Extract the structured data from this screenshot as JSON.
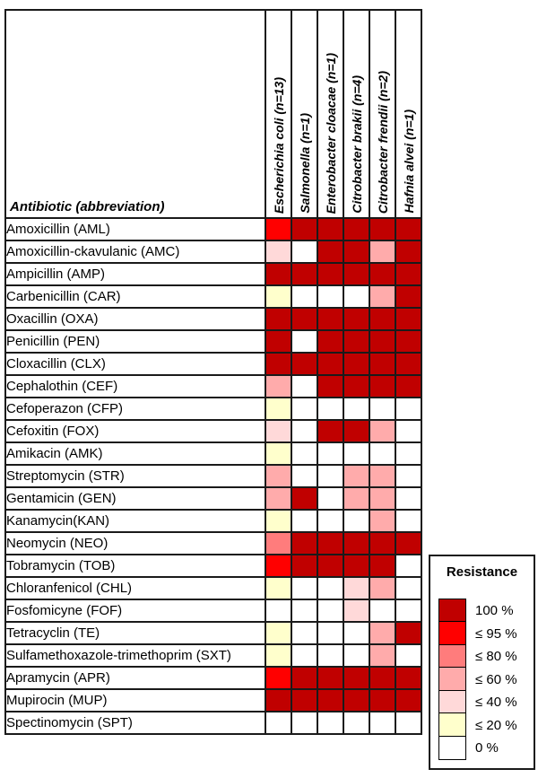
{
  "table": {
    "corner_label": "Antibiotic (abbreviation)"
  },
  "legend": {
    "title": "Resistance"
  },
  "chart_data": {
    "type": "heatmap",
    "description": "Percentage of antibiotic-resistant isolates per bacterial species; cell values are resistance buckets (upper bound %).",
    "columns": [
      "Escherichia coli (n=13)",
      "Salmonella (n=1)",
      "Enterobacter cloacae (n=1)",
      "Citrobacter brakii (n=4)",
      "Citrobacter frendii (n=2)",
      "Hafnia alvei (n=1)"
    ],
    "rows": [
      "Amoxicillin (AML)",
      "Amoxicillin-ckavulanic (AMC)",
      "Ampicillin (AMP)",
      "Carbenicillin (CAR)",
      "Oxacillin (OXA)",
      "Penicillin (PEN)",
      "Cloxacillin (CLX)",
      "Cephalothin (CEF)",
      "Cefoperazon (CFP)",
      "Cefoxitin (FOX)",
      "Amikacin (AMK)",
      "Streptomycin (STR)",
      "Gentamicin (GEN)",
      "Kanamycin(KAN)",
      "Neomycin (NEO)",
      "Tobramycin (TOB)",
      "Chloranfenicol (CHL)",
      "Fosfomicyne (FOF)",
      "Tetracyclin (TE)",
      "Sulfamethoxazole-trimethoprim (SXT)",
      "Apramycin (APR)",
      "Mupirocin (MUP)",
      "Spectinomycin (SPT)"
    ],
    "matrix": [
      [
        95,
        100,
        100,
        100,
        100,
        100
      ],
      [
        40,
        0,
        100,
        100,
        60,
        100
      ],
      [
        100,
        100,
        100,
        100,
        100,
        100
      ],
      [
        20,
        0,
        0,
        0,
        60,
        100
      ],
      [
        100,
        100,
        100,
        100,
        100,
        100
      ],
      [
        100,
        0,
        100,
        100,
        100,
        100
      ],
      [
        100,
        100,
        100,
        100,
        100,
        100
      ],
      [
        60,
        0,
        100,
        100,
        100,
        100
      ],
      [
        20,
        0,
        0,
        0,
        0,
        0
      ],
      [
        40,
        0,
        100,
        100,
        60,
        0
      ],
      [
        20,
        0,
        0,
        0,
        0,
        0
      ],
      [
        60,
        0,
        0,
        60,
        60,
        0
      ],
      [
        60,
        100,
        0,
        60,
        60,
        0
      ],
      [
        20,
        0,
        0,
        0,
        60,
        0
      ],
      [
        80,
        100,
        100,
        100,
        100,
        100
      ],
      [
        95,
        100,
        100,
        100,
        100,
        0
      ],
      [
        20,
        0,
        0,
        40,
        60,
        0
      ],
      [
        0,
        0,
        0,
        40,
        0,
        0
      ],
      [
        20,
        0,
        0,
        0,
        60,
        100
      ],
      [
        20,
        0,
        0,
        0,
        60,
        0
      ],
      [
        95,
        100,
        100,
        100,
        100,
        100
      ],
      [
        100,
        100,
        100,
        100,
        100,
        100
      ],
      [
        0,
        0,
        0,
        0,
        0,
        0
      ]
    ],
    "scale": [
      {
        "value": 100,
        "label": "100 %",
        "color": "#C00000"
      },
      {
        "value": 95,
        "label": "≤ 95 %",
        "color": "#FF0000"
      },
      {
        "value": 80,
        "label": "≤ 80 %",
        "color": "#FF7C7C"
      },
      {
        "value": 60,
        "label": "≤ 60 %",
        "color": "#FFABAB"
      },
      {
        "value": 40,
        "label": "≤ 40 %",
        "color": "#FFD9D9"
      },
      {
        "value": 20,
        "label": "≤ 20 %",
        "color": "#FFFFCC"
      },
      {
        "value": 0,
        "label": "0 %",
        "color": "#FFFFFF"
      }
    ],
    "legend_position": "bottom-right",
    "grid": true
  }
}
